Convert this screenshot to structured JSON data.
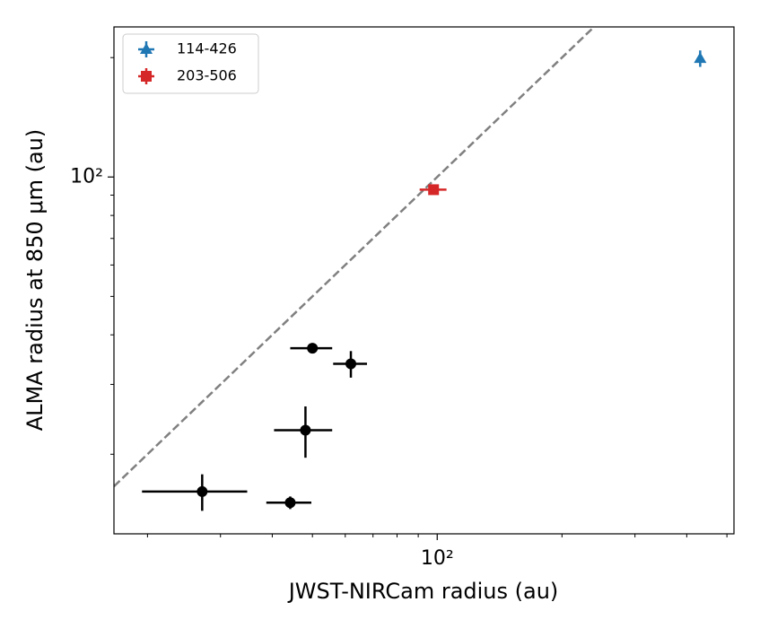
{
  "chart_data": {
    "type": "scatter",
    "xlabel": "JWST-NIRCam radius (au)",
    "ylabel": "ALMA radius at 850 μm (au)",
    "xscale": "log",
    "yscale": "log",
    "xlim": [
      16.6,
      520
    ],
    "ylim": [
      12.6,
      239
    ],
    "xticks": [
      {
        "value": 100,
        "label": "10²"
      }
    ],
    "yticks": [
      {
        "value": 100,
        "label": "10²"
      }
    ],
    "xminorticks": [
      20,
      30,
      40,
      50,
      60,
      70,
      80,
      90,
      200,
      300,
      400,
      500
    ],
    "yminorticks": [
      20,
      30,
      40,
      50,
      60,
      70,
      80,
      90,
      200
    ],
    "identity_line": true,
    "identity_line_color": "#808080",
    "legend": "upper left",
    "series": [
      {
        "color": "#000000",
        "marker": "o",
        "x": [
          27.1,
          44.2,
          48.1,
          50.0,
          61.9
        ],
        "y": [
          16.1,
          15.1,
          23.0,
          37.0,
          33.8
        ],
        "xerr": [
          7.7,
          5.5,
          7.7,
          5.8,
          5.8
        ],
        "yerr": [
          1.7,
          0.55,
          3.4,
          0.8,
          2.6
        ]
      },
      {
        "name": "114-426",
        "color": "#1f77b4",
        "marker": "^",
        "x": [
          431
        ],
        "y": [
          199
        ],
        "xerr": [
          3
        ],
        "yerr": [
          9.5
        ]
      },
      {
        "name": "203-506",
        "color": "#d62728",
        "marker": "s",
        "x": [
          98.0
        ],
        "y": [
          92.9
        ],
        "xerr": [
          7.3
        ],
        "yerr": [
          1.5
        ]
      }
    ]
  }
}
